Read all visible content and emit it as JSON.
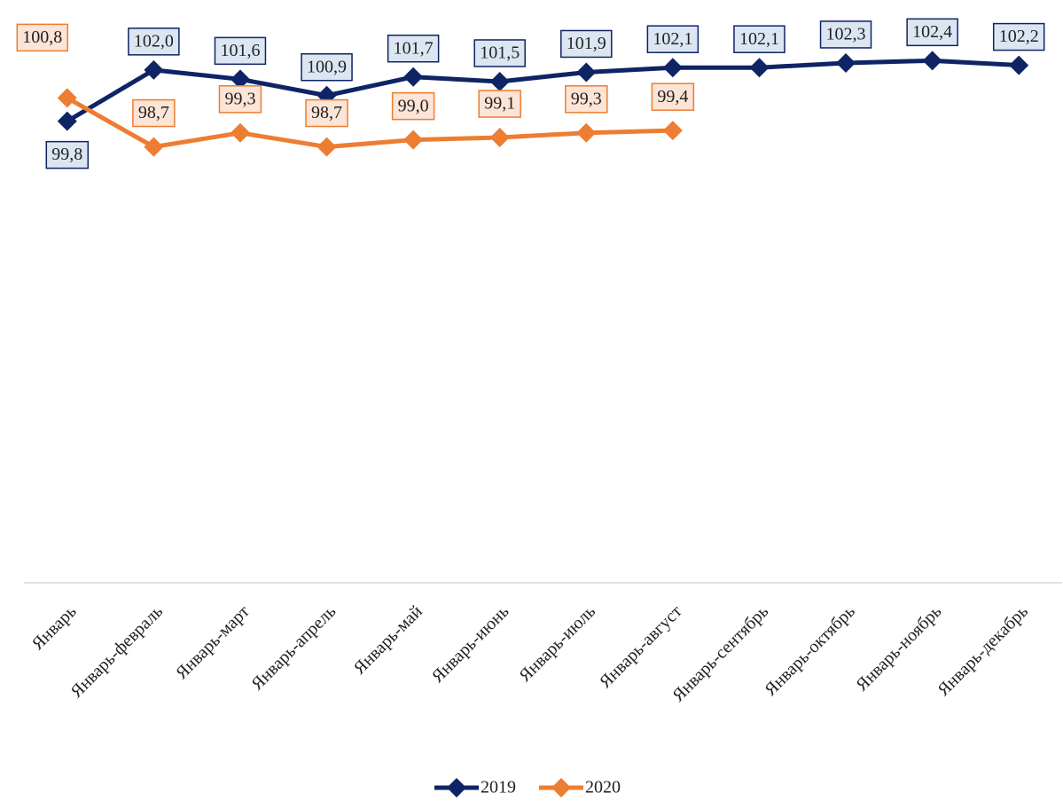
{
  "chart_data": {
    "type": "line",
    "categories": [
      "Январь",
      "Январь-февраль",
      "Январь-март",
      "Январь-апрель",
      "Январь-май",
      "Январь-июнь",
      "Январь-июль",
      "Январь-август",
      "Январь-сентябрь",
      "Январь-октябрь",
      "Январь-ноябрь",
      "Январь-декабрь"
    ],
    "series": [
      {
        "name": "2019",
        "color": "#0e2464",
        "values": [
          99.8,
          102.0,
          101.6,
          100.9,
          101.7,
          101.5,
          101.9,
          102.1,
          102.1,
          102.3,
          102.4,
          102.2
        ],
        "value_labels": [
          "99,8",
          "102,0",
          "101,6",
          "100,9",
          "101,7",
          "101,5",
          "101,9",
          "102,1",
          "102,1",
          "102,3",
          "102,4",
          "102,2"
        ]
      },
      {
        "name": "2020",
        "color": "#ed7d31",
        "values": [
          100.8,
          98.7,
          99.3,
          98.7,
          99.0,
          99.1,
          99.3,
          99.4,
          null,
          null,
          null,
          null
        ],
        "value_labels": [
          "100,8",
          "98,7",
          "99,3",
          "98,7",
          "99,0",
          "99,1",
          "99,3",
          "99,4",
          null,
          null,
          null,
          null
        ]
      }
    ],
    "ylim": [
      80,
      105
    ],
    "grid": false,
    "legend": "bottom"
  }
}
